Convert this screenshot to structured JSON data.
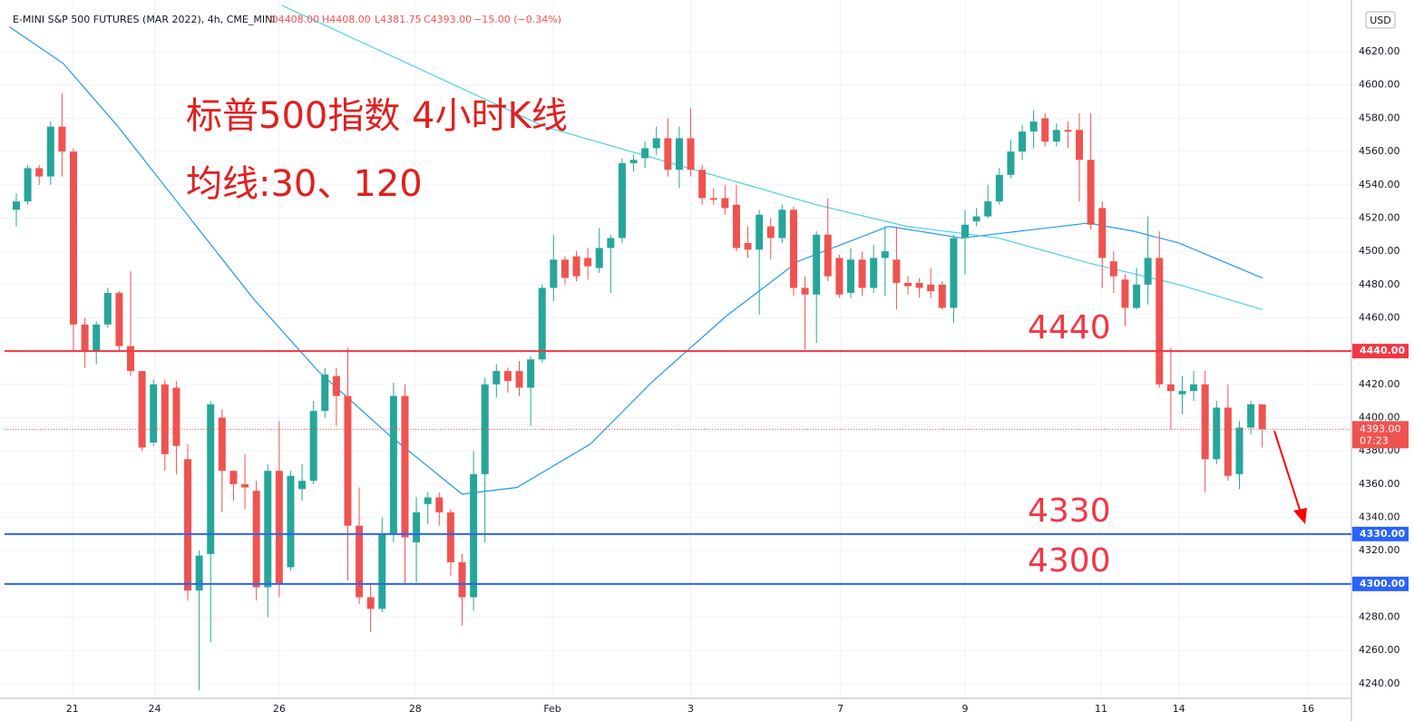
{
  "header": {
    "symbol": "E-MINI S&P 500 FUTURES (MAR 2022), 4h, CME_MINI",
    "open": "O4408.00",
    "high": "H4408.00",
    "low": "L4381.75",
    "close": "C4393.00",
    "change": "−15.00 (−0.34%)",
    "currency": "USD",
    "countdown": "07:23"
  },
  "chart_data": {
    "type": "candlestick",
    "title": "标普500指数 4小时K线",
    "subtitle": "均线:30、120",
    "up_color": "#26a69a",
    "down_color": "#ef5350",
    "open": [
      4525,
      4530,
      4550,
      4545,
      4575,
      4560,
      4456,
      4440,
      4456,
      4475,
      4443,
      4428,
      4385,
      4420,
      4418,
      4375,
      4296,
      4318,
      4400,
      4368,
      4360,
      4356,
      4298,
      4368,
      4310,
      4357,
      4362,
      4404,
      4425,
      4413,
      4335,
      4292,
      4285,
      4330,
      4413,
      4325,
      4348,
      4352,
      4343,
      4313,
      4292,
      4366,
      4420,
      4428,
      4428,
      4418,
      4435,
      4478,
      4495,
      4497,
      4496,
      4490,
      4502,
      4508,
      4553,
      4556,
      4562,
      4568,
      4549,
      4568,
      4549,
      4532,
      4532,
      4528,
      4505,
      4501,
      4515,
      4508,
      4525,
      4478,
      4474,
      4510,
      4496,
      4475,
      4495,
      4478,
      4496,
      4495,
      4481,
      4481,
      4480,
      4480,
      4466,
      4508,
      4518,
      4521,
      4530,
      4546,
      4560,
      4572,
      4580,
      4566,
      4573,
      4573,
      4555,
      4526,
      4494,
      4483,
      4466,
      4480,
      4496,
      4420,
      4414,
      4416,
      4420,
      4375,
      4406,
      4366,
      4394,
      4408
    ],
    "high": [
      4535,
      4552,
      4552,
      4578,
      4595,
      4562,
      4460,
      4458,
      4478,
      4476,
      4488,
      4425,
      4423,
      4423,
      4422,
      4384,
      4320,
      4410,
      4405,
      4368,
      4378,
      4362,
      4372,
      4398,
      4368,
      4372,
      4410,
      4430,
      4430,
      4442,
      4358,
      4300,
      4340,
      4421,
      4420,
      4352,
      4355,
      4355,
      4345,
      4318,
      4380,
      4424,
      4432,
      4430,
      4434,
      4437,
      4480,
      4510,
      4497,
      4500,
      4502,
      4514,
      4510,
      4556,
      4558,
      4566,
      4575,
      4580,
      4575,
      4586,
      4552,
      4538,
      4540,
      4540,
      4515,
      4525,
      4520,
      4528,
      4527,
      4485,
      4512,
      4532,
      4498,
      4502,
      4500,
      4504,
      4515,
      4515,
      4485,
      4484,
      4490,
      4482,
      4510,
      4525,
      4526,
      4540,
      4550,
      4567,
      4576,
      4585,
      4583,
      4577,
      4578,
      4583,
      4583,
      4530,
      4500,
      4486,
      4490,
      4521,
      4512,
      4442,
      4425,
      4428,
      4428,
      4410,
      4420,
      4398,
      4410,
      4408
    ],
    "low": [
      4515,
      4528,
      4540,
      4540,
      4545,
      4440,
      4430,
      4432,
      4454,
      4440,
      4425,
      4380,
      4383,
      4368,
      4366,
      4290,
      4236,
      4265,
      4343,
      4350,
      4345,
      4290,
      4280,
      4292,
      4308,
      4350,
      4360,
      4400,
      4395,
      4302,
      4288,
      4271,
      4283,
      4325,
      4300,
      4301,
      4336,
      4335,
      4305,
      4275,
      4284,
      4325,
      4412,
      4415,
      4413,
      4395,
      4433,
      4470,
      4480,
      4482,
      4483,
      4487,
      4475,
      4505,
      4548,
      4550,
      4558,
      4545,
      4538,
      4545,
      4528,
      4528,
      4522,
      4500,
      4496,
      4462,
      4495,
      4505,
      4473,
      4441,
      4445,
      4482,
      4472,
      4472,
      4473,
      4475,
      4473,
      4465,
      4474,
      4472,
      4472,
      4465,
      4457,
      4486,
      4515,
      4520,
      4528,
      4544,
      4555,
      4562,
      4563,
      4563,
      4562,
      4530,
      4513,
      4478,
      4475,
      4455,
      4465,
      4468,
      4418,
      4393,
      4402,
      4410,
      4355,
      4372,
      4362,
      4357,
      4390,
      4382
    ],
    "close": [
      4530,
      4550,
      4545,
      4575,
      4560,
      4456,
      4440,
      4456,
      4475,
      4443,
      4428,
      4382,
      4420,
      4378,
      4383,
      4296,
      4317,
      4408,
      4368,
      4360,
      4358,
      4298,
      4368,
      4300,
      4365,
      4362,
      4404,
      4426,
      4413,
      4335,
      4292,
      4285,
      4330,
      4413,
      4328,
      4343,
      4352,
      4343,
      4313,
      4292,
      4366,
      4420,
      4428,
      4422,
      4418,
      4435,
      4478,
      4495,
      4484,
      4485,
      4491,
      4502,
      4508,
      4553,
      4555,
      4562,
      4568,
      4549,
      4568,
      4549,
      4532,
      4531,
      4526,
      4502,
      4501,
      4522,
      4508,
      4525,
      4478,
      4474,
      4510,
      4485,
      4474,
      4495,
      4478,
      4496,
      4500,
      4481,
      4479,
      4478,
      4476,
      4466,
      4508,
      4516,
      4521,
      4530,
      4546,
      4560,
      4572,
      4578,
      4566,
      4573,
      4572,
      4555,
      4516,
      4496,
      4485,
      4466,
      4480,
      4496,
      4420,
      4416,
      4416,
      4420,
      4375,
      4406,
      4365,
      4394,
      4408,
      4393
    ],
    "ma": [
      {
        "color": "#2196f3",
        "x": [
          -0.6,
          4.1,
          8.9,
          14.5,
          20.8,
          26.4,
          32.7,
          39.0,
          43.8,
          50.2,
          55.7,
          62.1,
          68.4,
          76.3,
          82.7,
          93.8,
          97.8,
          101.7,
          109
        ],
        "values": [
          4635,
          4613,
          4575,
          4526,
          4471,
          4428,
          4389,
          4354,
          4358,
          4384,
          4422,
          4461,
          4494,
          4515,
          4508,
          4517,
          4512,
          4505,
          4484
        ]
      },
      {
        "color": "#4dd0e1",
        "x": [
          23.2,
          46.2,
          70.0,
          77.9,
          85.9,
          93.8,
          101.7,
          109
        ],
        "values": [
          4648,
          4575,
          4528,
          4515,
          4508,
          4493,
          4480,
          4465
        ]
      }
    ],
    "levels": [
      {
        "value": 4440,
        "label": "4440.00",
        "annotation": "4440",
        "color": "#f23645"
      },
      {
        "value": 4330,
        "label": "4330.00",
        "annotation": "4330",
        "color": "#2962ff"
      },
      {
        "value": 4300,
        "label": "4300.00",
        "annotation": "4300",
        "color": "#2962ff"
      }
    ],
    "last": {
      "value": 4393,
      "label": "4393.00"
    },
    "xlim": [
      -1.03,
      116.8
    ],
    "xticks": [
      {
        "value": 4.9,
        "label": "21"
      },
      {
        "value": 12.1,
        "label": "24"
      },
      {
        "value": 23.0,
        "label": "26"
      },
      {
        "value": 34.9,
        "label": "28"
      },
      {
        "value": 46.9,
        "label": "Feb"
      },
      {
        "value": 59.0,
        "label": "3"
      },
      {
        "value": 72.1,
        "label": "7"
      },
      {
        "value": 83.0,
        "label": "9"
      },
      {
        "value": 94.9,
        "label": "11"
      },
      {
        "value": 101.7,
        "label": "14"
      },
      {
        "value": 113.0,
        "label": "16"
      }
    ],
    "ylim": [
      4231.2,
      4648.4
    ],
    "yticks": [
      {
        "value": 4240,
        "label": "4240.00"
      },
      {
        "value": 4260,
        "label": "4260.00"
      },
      {
        "value": 4280,
        "label": "4280.00"
      },
      {
        "value": 4300,
        "label": "4300.00"
      },
      {
        "value": 4320,
        "label": "4320.00"
      },
      {
        "value": 4340,
        "label": "4340.00"
      },
      {
        "value": 4360,
        "label": "4360.00"
      },
      {
        "value": 4380,
        "label": "4380.00"
      },
      {
        "value": 4400,
        "label": "4400.00"
      },
      {
        "value": 4420,
        "label": "4420.00"
      },
      {
        "value": 4440,
        "label": "4440.00"
      },
      {
        "value": 4460,
        "label": "4460.00"
      },
      {
        "value": 4480,
        "label": "4480.00"
      },
      {
        "value": 4500,
        "label": "4500.00"
      },
      {
        "value": 4520,
        "label": "4520.00"
      },
      {
        "value": 4540,
        "label": "4540.00"
      },
      {
        "value": 4560,
        "label": "4560.00"
      },
      {
        "value": 4580,
        "label": "4580.00"
      },
      {
        "value": 4600,
        "label": "4600.00"
      },
      {
        "value": 4620,
        "label": "4620.00"
      }
    ],
    "grid": true
  }
}
